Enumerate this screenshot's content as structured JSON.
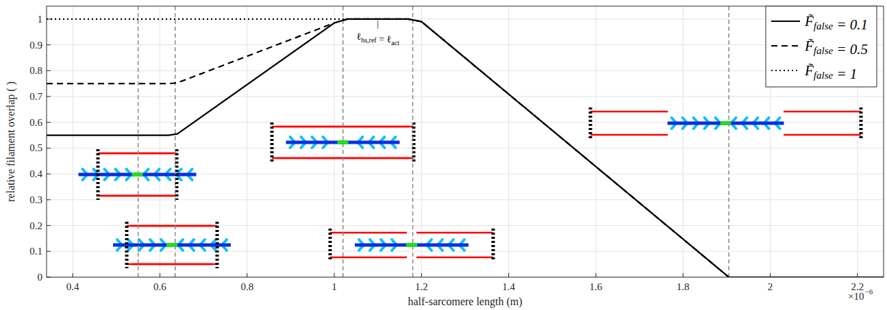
{
  "chart_data": {
    "type": "line",
    "x_label": "half-sarcomere length (m)",
    "y_label": "relative filament overlap ( )",
    "x_multiplier": {
      "base": "×10",
      "exponent": "−6"
    },
    "annotation": "ℓhs,ref = ℓact",
    "x": [
      0.34,
      0.62,
      0.64,
      1.0,
      1.03,
      1.17,
      1.2,
      1.905,
      2.26
    ],
    "series": [
      {
        "name": "F̃false = 0.1",
        "color": "#000000",
        "line_style": "solid",
        "values": [
          0.55,
          0.55,
          0.555,
          0.985,
          1,
          1,
          0.99,
          0,
          0
        ]
      },
      {
        "name": "F̃false = 0.5",
        "color": "#000000",
        "line_style": "dashed",
        "values": [
          0.75,
          0.75,
          0.753,
          0.985,
          1,
          1,
          0.99,
          0,
          0
        ]
      },
      {
        "name": "F̃false = 1",
        "color": "#000000",
        "line_style": "dotted",
        "values": [
          1,
          1,
          1,
          1,
          1,
          1,
          0.99,
          0,
          0
        ]
      }
    ],
    "reference_lines": [
      0.55,
      0.635,
      1.02,
      1.18,
      1.905
    ],
    "xlim": [
      0.34,
      2.26
    ],
    "ylim": [
      0,
      1.05
    ],
    "xticks": [
      0.4,
      0.6,
      0.8,
      1,
      1.2,
      1.4,
      1.6,
      1.8,
      2,
      2.2
    ],
    "yticks": [
      0,
      0.1,
      0.2,
      0.3,
      0.4,
      0.5,
      0.6,
      0.7,
      0.8,
      0.9,
      1
    ],
    "grid": true,
    "legend": "upper right"
  }
}
